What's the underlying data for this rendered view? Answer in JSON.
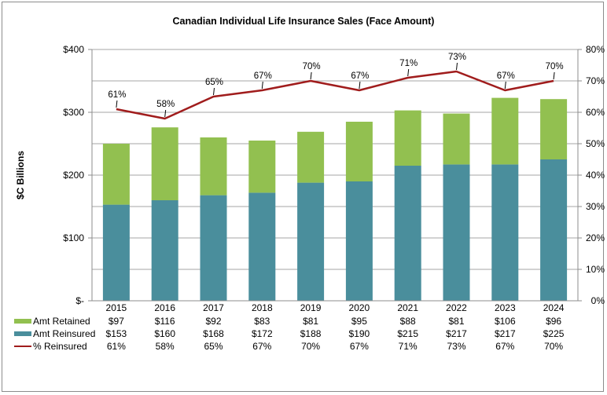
{
  "chart_data": {
    "type": "bar",
    "subtype": "stacked-bar-with-line-secondary-axis",
    "title": "Canadian Individual Life Insurance Sales (Face Amount)",
    "xlabel": "",
    "ylabel": "$C Billions",
    "y2label": "",
    "categories": [
      "2015",
      "2016",
      "2017",
      "2018",
      "2019",
      "2020",
      "2021",
      "2022",
      "2023",
      "2024"
    ],
    "ylim": [
      0,
      400
    ],
    "y2lim": [
      0,
      0.8
    ],
    "yticks": [
      0,
      100,
      200,
      300,
      400
    ],
    "ytick_labels": [
      "$-",
      "$100",
      "$200",
      "$300",
      "$400"
    ],
    "y2ticks": [
      0,
      0.1,
      0.2,
      0.3,
      0.4,
      0.5,
      0.6,
      0.7,
      0.8
    ],
    "y2tick_labels": [
      "0%",
      "10%",
      "20%",
      "30%",
      "40%",
      "50%",
      "60%",
      "70%",
      "80%"
    ],
    "gridlines": [
      50,
      100,
      150,
      200,
      250,
      300,
      350,
      400
    ],
    "grid": true,
    "legend": "data-table-below",
    "series": [
      {
        "name": "Amt Reinsured",
        "type": "bar",
        "stack": "base",
        "axis": "left",
        "color": "#4a8e9c",
        "values": [
          153,
          160,
          168,
          172,
          188,
          190,
          215,
          217,
          217,
          225
        ],
        "labels": [
          "$153",
          "$160",
          "$168",
          "$172",
          "$188",
          "$190",
          "$215",
          "$217",
          "$217",
          "$225"
        ]
      },
      {
        "name": "Amt Retained",
        "type": "bar",
        "stack": "top",
        "axis": "left",
        "color": "#92c050",
        "values": [
          97,
          116,
          92,
          83,
          81,
          95,
          88,
          81,
          106,
          96
        ],
        "labels": [
          "$97",
          "$116",
          "$92",
          "$83",
          "$81",
          "$95",
          "$88",
          "$81",
          "$106",
          "$96"
        ]
      },
      {
        "name": "% Reinsured",
        "type": "line",
        "axis": "right",
        "color": "#a01c1c",
        "values": [
          0.61,
          0.58,
          0.65,
          0.67,
          0.7,
          0.67,
          0.71,
          0.73,
          0.67,
          0.7
        ],
        "labels": [
          "61%",
          "58%",
          "65%",
          "67%",
          "70%",
          "67%",
          "71%",
          "73%",
          "67%",
          "70%"
        ]
      }
    ],
    "data_table": {
      "header": [
        "2015",
        "2016",
        "2017",
        "2018",
        "2019",
        "2020",
        "2021",
        "2022",
        "2023",
        "2024"
      ],
      "rows": [
        {
          "legend": "Amt Retained",
          "color": "#92c050",
          "marker": "bar",
          "cells": [
            "$97",
            "$116",
            "$92",
            "$83",
            "$81",
            "$95",
            "$88",
            "$81",
            "$106",
            "$96"
          ]
        },
        {
          "legend": "Amt Reinsured",
          "color": "#4a8e9c",
          "marker": "bar",
          "cells": [
            "$153",
            "$160",
            "$168",
            "$172",
            "$188",
            "$190",
            "$215",
            "$217",
            "$217",
            "$225"
          ]
        },
        {
          "legend": "% Reinsured",
          "color": "#a01c1c",
          "marker": "line",
          "cells": [
            "61%",
            "58%",
            "65%",
            "67%",
            "70%",
            "67%",
            "71%",
            "73%",
            "67%",
            "70%"
          ]
        }
      ]
    }
  },
  "colors": {
    "gridline": "#a6a6a6",
    "axis": "#8c8c8c",
    "frame": "#8c8c8c"
  }
}
